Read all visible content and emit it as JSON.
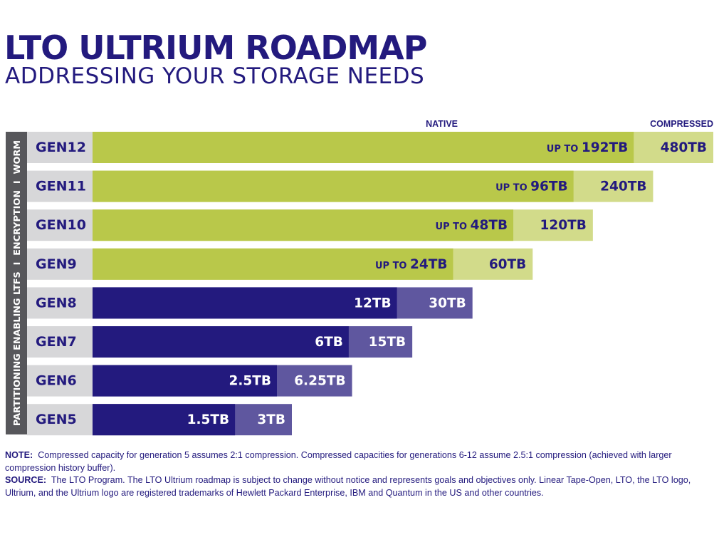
{
  "header": {
    "title": "LTO ULTRIUM ROADMAP",
    "subtitle": "ADDRESSING YOUR STORAGE NEEDS"
  },
  "colors": {
    "title": "#231a7e",
    "native_lto9plus": "#b9c84a",
    "compressed_lto9plus": "#d2db8a",
    "native_lto8minus": "#231a7e",
    "compressed_lto8minus": "#5f579f",
    "label_box": "#d7d7d9",
    "side_band": "#57575b"
  },
  "chart_data": {
    "type": "bar",
    "orientation": "horizontal",
    "stacked_overlay": true,
    "title": "LTO ULTRIUM ROADMAP",
    "subtitle": "ADDRESSING YOUR STORAGE NEEDS",
    "side_label": "PARTITIONING ENABLING LTFS  I  ENCRYPTION  I  WORM",
    "legend": {
      "native": "NATIVE",
      "compressed": "COMPRESSED",
      "placement": "top-right"
    },
    "up_to_prefix": "UP TO",
    "categories": [
      "GEN12",
      "GEN11",
      "GEN10",
      "GEN9",
      "GEN8",
      "GEN7",
      "GEN6",
      "GEN5"
    ],
    "series": [
      {
        "name": "Native",
        "values": [
          192,
          96,
          48,
          24,
          12,
          6,
          2.5,
          1.5
        ],
        "labels": [
          "192TB",
          "96TB",
          "48TB",
          "24TB",
          "12TB",
          "6TB",
          "2.5TB",
          "1.5TB"
        ],
        "up_to": [
          true,
          true,
          true,
          true,
          false,
          false,
          false,
          false
        ]
      },
      {
        "name": "Compressed",
        "values": [
          480,
          240,
          120,
          60,
          30,
          15,
          6.25,
          3
        ],
        "labels": [
          "480TB",
          "240TB",
          "120TB",
          "60TB",
          "30TB",
          "15TB",
          "6.25TB",
          "3TB"
        ]
      }
    ],
    "value_unit": "TB",
    "scale": "nonlinear-roadmap"
  },
  "notes": {
    "note_label": "NOTE:",
    "note_text": "Compressed capacity for generation 5 assumes 2:1 compression. Compressed capacities for generations 6-12 assume 2.5:1 compression (achieved with larger compression history buffer).",
    "source_label": "SOURCE:",
    "source_text": "The LTO Program. The LTO Ultrium roadmap is subject to change without notice and represents goals and objectives only. Linear Tape-Open, LTO, the LTO logo, Ultrium, and the Ultrium logo are registered trademarks of Hewlett Packard Enterprise, IBM and Quantum in the US and other countries."
  }
}
